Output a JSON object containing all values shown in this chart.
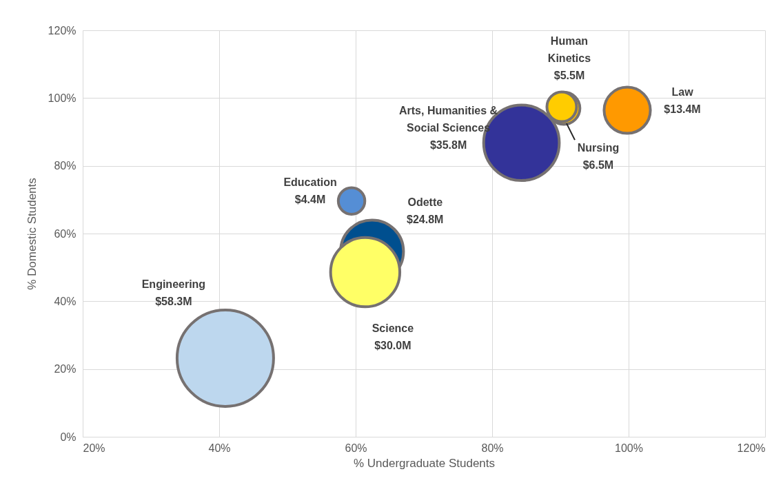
{
  "chart_data": {
    "type": "bubble",
    "xlabel": "% Undergraduate Students",
    "ylabel": "% Domestic Students",
    "series": [
      {
        "name": "Engineering",
        "color": "#bdd7ee",
        "x": [
          40.9
        ],
        "values": [
          23.2
        ],
        "sizes": [
          58.3
        ],
        "value_labels": [
          "$58.3M"
        ]
      },
      {
        "name": "Odette",
        "color": "#004f8f",
        "x": [
          62.4
        ],
        "values": [
          54.7
        ],
        "sizes": [
          24.8
        ],
        "value_labels": [
          "$24.8M"
        ]
      },
      {
        "name": "Science",
        "color": "#ffff66",
        "x": [
          61.4
        ],
        "values": [
          48.6
        ],
        "sizes": [
          30.0
        ],
        "value_labels": [
          "$30.0M"
        ]
      },
      {
        "name": "Education",
        "color": "#558ed5",
        "x": [
          59.4
        ],
        "values": [
          69.6
        ],
        "sizes": [
          4.4
        ],
        "value_labels": [
          "$4.4M"
        ]
      },
      {
        "name": "Arts, Humanities & Social Sciences",
        "color": "#333399",
        "x": [
          84.3
        ],
        "values": [
          86.8
        ],
        "sizes": [
          35.8
        ],
        "value_labels": [
          "$35.8M"
        ]
      },
      {
        "name": "Nursing",
        "color": "#ffc000",
        "x": [
          90.5
        ],
        "values": [
          97.0
        ],
        "sizes": [
          6.5
        ],
        "value_labels": [
          "$6.5M"
        ]
      },
      {
        "name": "Human Kinetics",
        "color": "#ffcc00",
        "x": [
          90.2
        ],
        "values": [
          97.4
        ],
        "sizes": [
          5.5
        ],
        "value_labels": [
          "$5.5M"
        ]
      },
      {
        "name": "Law",
        "color": "#ff9900",
        "x": [
          99.8
        ],
        "values": [
          96.4
        ],
        "sizes": [
          13.4
        ],
        "value_labels": [
          "$13.4M"
        ]
      }
    ],
    "xlim": [
      20,
      120
    ],
    "xticks": [
      {
        "value": 20,
        "label": "20%"
      },
      {
        "value": 40,
        "label": "40%"
      },
      {
        "value": 60,
        "label": "60%"
      },
      {
        "value": 80,
        "label": "80%"
      },
      {
        "value": 100,
        "label": "100%"
      },
      {
        "value": 120,
        "label": "120%"
      }
    ],
    "ylim": [
      0,
      120
    ],
    "yticks": [
      {
        "value": 0,
        "label": "0%"
      },
      {
        "value": 20,
        "label": "20%"
      },
      {
        "value": 40,
        "label": "40%"
      },
      {
        "value": 60,
        "label": "60%"
      },
      {
        "value": 80,
        "label": "80%"
      },
      {
        "value": 100,
        "label": "100%"
      },
      {
        "value": 120,
        "label": "120%"
      }
    ],
    "grid": true
  }
}
